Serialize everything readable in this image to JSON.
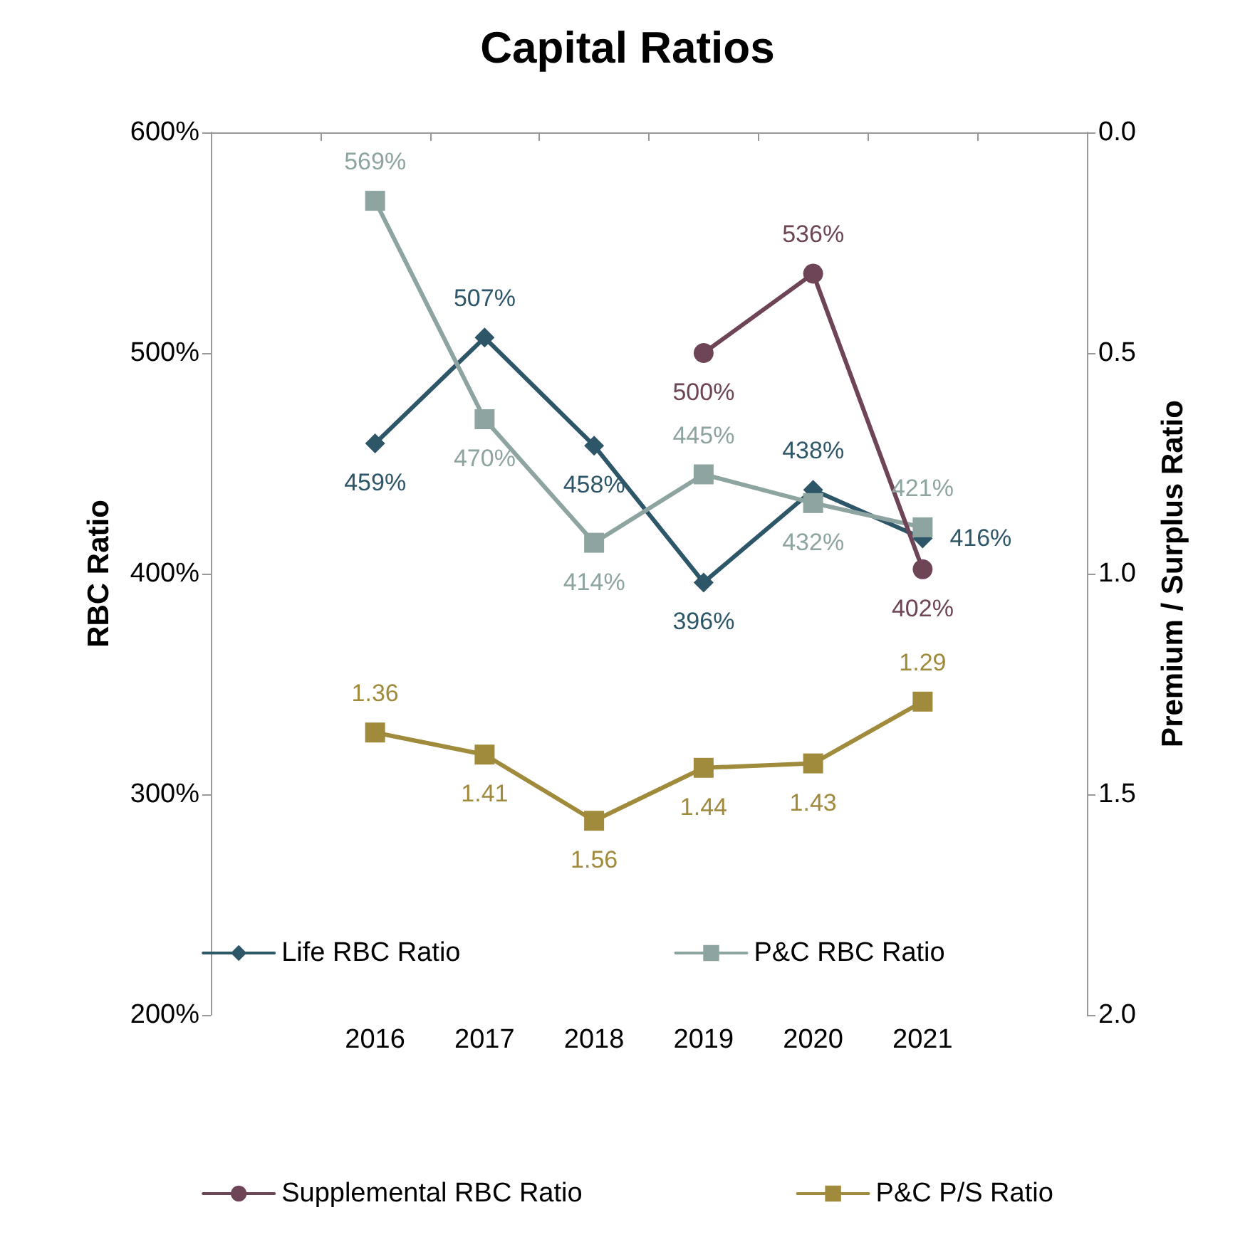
{
  "chart_data": {
    "type": "line",
    "title": "Capital Ratios",
    "ylabel": "RBC Ratio",
    "y2label": "Premium / Surplus Ratio",
    "categories": [
      null,
      "2016",
      "2017",
      "2018",
      "2019",
      "2020",
      "2021",
      null
    ],
    "ylim": [
      200,
      600
    ],
    "yticks": [
      {
        "value": 200,
        "label": "200%"
      },
      {
        "value": 300,
        "label": "300%"
      },
      {
        "value": 400,
        "label": "400%"
      },
      {
        "value": 500,
        "label": "500%"
      },
      {
        "value": 600,
        "label": "600%"
      }
    ],
    "y2lim": [
      2,
      0
    ],
    "y2ticks": [
      {
        "value": 0,
        "label": "0.0"
      },
      {
        "value": 0.5,
        "label": "0.5"
      },
      {
        "value": 1,
        "label": "1.0"
      },
      {
        "value": 1.5,
        "label": "1.5"
      },
      {
        "value": 2,
        "label": "2.0"
      }
    ],
    "grid": false,
    "legend": "bottom",
    "line_style": "solid",
    "series": [
      {
        "name": "Life RBC Ratio",
        "color": "#2e5669",
        "marker": "diamond",
        "values": [
          null,
          459,
          507,
          458,
          396,
          438,
          416,
          null
        ],
        "value_labels": [
          null,
          "459%",
          "507%",
          "458%",
          "396%",
          "438%",
          "416%",
          null
        ]
      },
      {
        "name": "P&C RBC Ratio",
        "color": "#8ea4a0",
        "marker": "square",
        "values": [
          null,
          569,
          470,
          414,
          445,
          432,
          421,
          null
        ],
        "value_labels": [
          null,
          "569%",
          "470%",
          "414%",
          "445%",
          "432%",
          "421%",
          null
        ]
      },
      {
        "name": "Supplemental RBC Ratio",
        "color": "#6e4457",
        "marker": "circle",
        "values": [
          null,
          null,
          null,
          null,
          500,
          536,
          402,
          null
        ],
        "value_labels": [
          null,
          null,
          null,
          null,
          "500%",
          "536%",
          "402%",
          null
        ]
      },
      {
        "name": "P&C P/S Ratio",
        "color": "#a08a3c",
        "marker": "square",
        "axis": "y2",
        "values": [
          null,
          1.36,
          1.41,
          1.56,
          1.44,
          1.43,
          1.29,
          null
        ],
        "value_labels": [
          null,
          "1.36",
          "1.41",
          "1.56",
          "1.44",
          "1.43",
          "1.29",
          null
        ]
      }
    ]
  }
}
